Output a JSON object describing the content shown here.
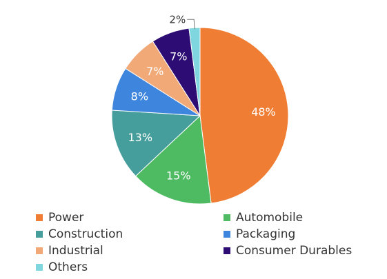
{
  "chart_data": {
    "type": "pie",
    "title": "",
    "slices": [
      {
        "name": "Power",
        "value": 48,
        "label": "48%",
        "color": "#EF7D33"
      },
      {
        "name": "Automobile",
        "value": 15,
        "label": "15%",
        "color": "#4EBB63"
      },
      {
        "name": "Construction",
        "value": 13,
        "label": "13%",
        "color": "#459E9B"
      },
      {
        "name": "Packaging",
        "value": 8,
        "label": "8%",
        "color": "#3E86DD"
      },
      {
        "name": "Industrial",
        "value": 7,
        "label": "7%",
        "color": "#F2A978"
      },
      {
        "name": "Consumer Durables",
        "value": 7,
        "label": "7%",
        "color": "#2D0D73"
      },
      {
        "name": "Others",
        "value": 2,
        "label": "2%",
        "color": "#7FD6DF"
      }
    ],
    "legend_position": "bottom"
  }
}
